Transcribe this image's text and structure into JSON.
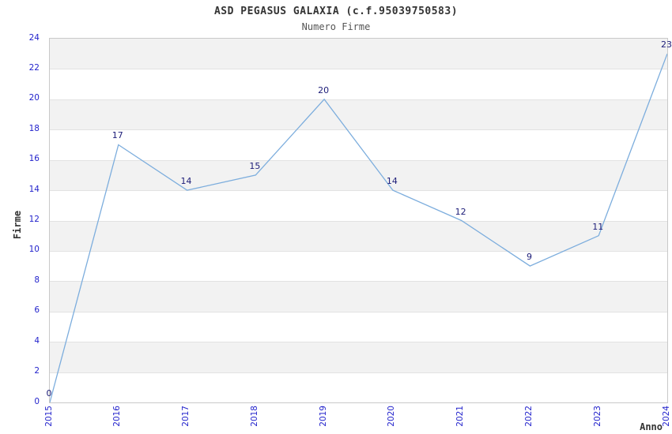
{
  "chart_data": {
    "type": "line",
    "title": "ASD PEGASUS GALAXIA (c.f.95039750583)",
    "subtitle": "Numero Firme",
    "xlabel": "Anno",
    "ylabel": "Firme",
    "categories": [
      "2015",
      "2016",
      "2017",
      "2018",
      "2019",
      "2020",
      "2021",
      "2022",
      "2023",
      "2024"
    ],
    "values": [
      0,
      17,
      14,
      15,
      20,
      14,
      12,
      9,
      11,
      23
    ],
    "ylim": [
      0,
      24
    ],
    "ytick_step": 2,
    "legend": "none",
    "grid": "horizontal-bands",
    "colors": {
      "line": "#7caddd",
      "tick_label": "#2323cc",
      "point_label": "#1c1c78",
      "band": "#f2f2f2",
      "gridline": "#e2e2e2",
      "plot_border": "#c9c9c9",
      "title": "#333333",
      "subtitle": "#555555",
      "axis_label": "#333333"
    }
  }
}
